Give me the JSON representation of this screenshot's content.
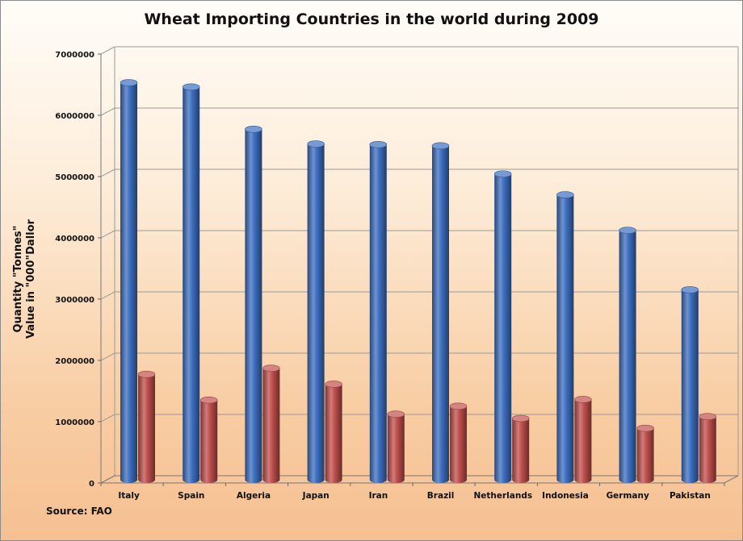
{
  "chart_data": {
    "type": "bar",
    "title": "Wheat Importing Countries in the world during 2009",
    "ylabel_line1": "Quantity \"Tonnes\"",
    "ylabel_line2": "Value in \"000\"Dallor",
    "source": "Source: FAO",
    "categories": [
      "Italy",
      "Spain",
      "Algeria",
      "Japan",
      "Iran",
      "Brazil",
      "Netherlands",
      "Indonesia",
      "Germany",
      "Pakistan"
    ],
    "series": [
      {
        "color": "#3e6fc0",
        "values": [
          6480000,
          6410000,
          5720000,
          5480000,
          5470000,
          5450000,
          4990000,
          4650000,
          4070000,
          3100000
        ]
      },
      {
        "color": "#c0504d",
        "values": [
          1720000,
          1300000,
          1820000,
          1560000,
          1070000,
          1200000,
          1000000,
          1310000,
          840000,
          1030000
        ]
      }
    ],
    "ylim": [
      0,
      7000000
    ],
    "yticks": [
      "0",
      "1000000",
      "2000000",
      "3000000",
      "4000000",
      "5000000",
      "6000000",
      "7000000"
    ],
    "grid": true
  }
}
